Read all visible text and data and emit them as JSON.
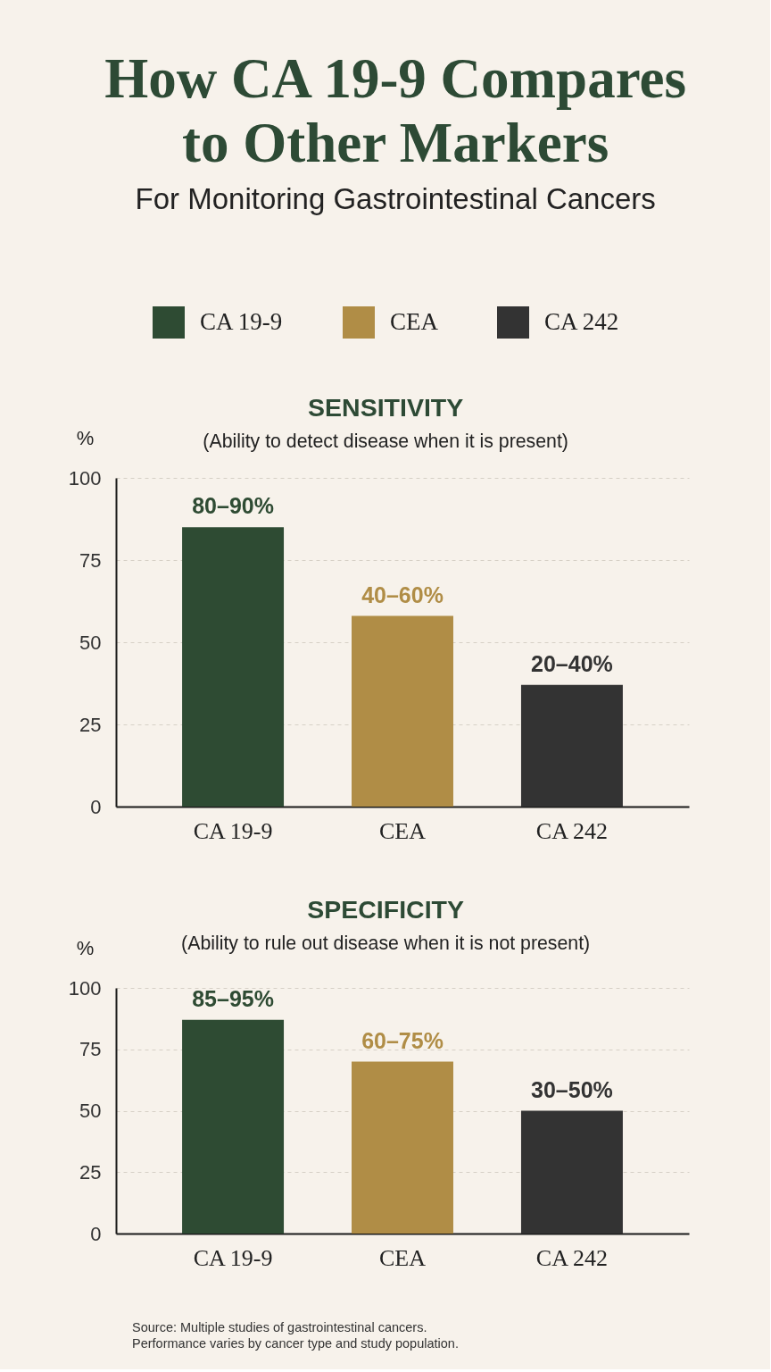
{
  "chart_data": [
    {
      "type": "other",
      "title": "How CA 19-9 Compares to Other Markers",
      "subtitle": "For Monitoring Gastrointestinal Cancers"
    },
    {
      "type": "bar",
      "title": "SENSITIVITY",
      "subtitle": "(Ability to detect disease when it is present)",
      "ylabel": "%",
      "categories": [
        "CA 19-9",
        "CEA",
        "CA 242"
      ],
      "stacked": true,
      "series": [
        {
          "name": "CA 19-9",
          "color": "#2e4b33",
          "values": [
            85,
            null,
            null
          ]
        },
        {
          "name": "CEA",
          "color": "#b08d46",
          "values": [
            null,
            58,
            null
          ]
        },
        {
          "name": "CA 242",
          "color": "#333333",
          "values": [
            null,
            null,
            37
          ]
        }
      ],
      "ylim": [
        0,
        100
      ],
      "yticks": [
        0,
        25,
        50,
        75,
        100
      ],
      "grid": "y",
      "legend": "top",
      "annotations": [
        {
          "text": "80–90%",
          "x": "CA 19-9",
          "y": 85
        },
        {
          "text": "40–60%",
          "x": "CEA",
          "y": 58
        },
        {
          "text": "20–40%",
          "x": "CA 242",
          "y": 37
        }
      ]
    },
    {
      "type": "bar",
      "title": "SPECIFICITY",
      "subtitle": "(Ability to rule out disease when it is not present)",
      "ylabel": "%",
      "categories": [
        "CA 19-9",
        "CEA",
        "CA 242"
      ],
      "stacked": true,
      "series": [
        {
          "name": "CA 19-9",
          "color": "#2e4b33",
          "values": [
            87,
            null,
            null
          ]
        },
        {
          "name": "CEA",
          "color": "#b08d46",
          "values": [
            null,
            70,
            null
          ]
        },
        {
          "name": "CA 242",
          "color": "#333333",
          "values": [
            null,
            null,
            50
          ]
        }
      ],
      "ylim": [
        0,
        100
      ],
      "yticks": [
        0,
        25,
        50,
        75,
        100
      ],
      "grid": "y",
      "annotations": [
        {
          "text": "85–95%",
          "x": "CA 19-9",
          "y": 87
        },
        {
          "text": "60–75%",
          "x": "CEA",
          "y": 70
        },
        {
          "text": "30–50%",
          "x": "CA 242",
          "y": 50
        },
        "Source: Multiple studies of gastrointestinal cancers.",
        "Performance varies by cancer type and study population."
      ]
    }
  ]
}
